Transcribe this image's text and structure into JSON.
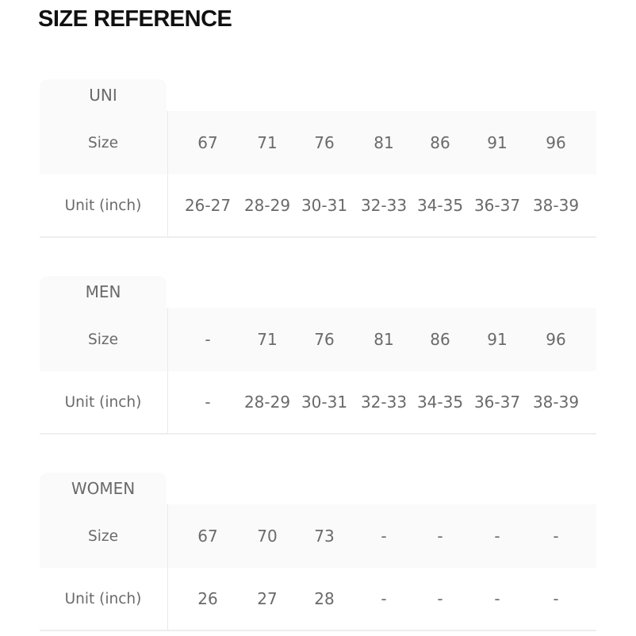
{
  "title": "SIZE REFERENCE",
  "tables": [
    {
      "name": "UNI",
      "size_label": "Size",
      "unit_label": "Unit (inch)",
      "sizes": [
        "67",
        "71",
        "76",
        "81",
        "86",
        "91",
        "96"
      ],
      "units": [
        "26-27",
        "28-29",
        "30-31",
        "32-33",
        "34-35",
        "36-37",
        "38-39"
      ]
    },
    {
      "name": "MEN",
      "size_label": "Size",
      "unit_label": "Unit (inch)",
      "sizes": [
        "-",
        "71",
        "76",
        "81",
        "86",
        "91",
        "96"
      ],
      "units": [
        "-",
        "28-29",
        "30-31",
        "32-33",
        "34-35",
        "36-37",
        "38-39"
      ]
    },
    {
      "name": "WOMEN",
      "size_label": "Size",
      "unit_label": "Unit (inch)",
      "sizes": [
        "67",
        "70",
        "73",
        "-",
        "-",
        "-",
        "-"
      ],
      "units": [
        "26",
        "27",
        "28",
        "-",
        "-",
        "-",
        "-"
      ]
    }
  ]
}
